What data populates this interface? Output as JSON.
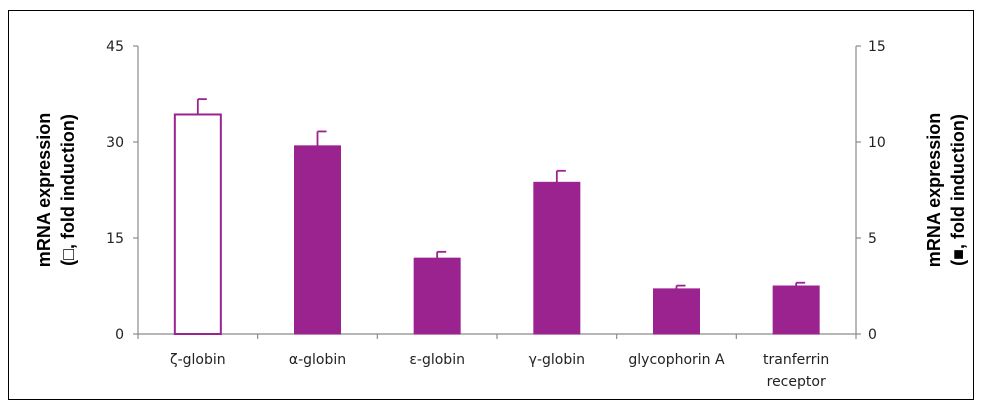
{
  "chart_data": {
    "type": "bar",
    "categories": [
      "ζ-globin",
      "α-globin",
      "ε-globin",
      "γ-globin",
      "glycophorin A",
      "tranferrin receptor"
    ],
    "series": [
      {
        "axis": "left",
        "values": [
          34.3,
          null,
          null,
          null,
          null,
          null
        ],
        "errors": [
          2.4,
          null,
          null,
          null,
          null,
          null
        ],
        "fill": "#ffffff",
        "stroke": "#9b2390"
      },
      {
        "axis": "right",
        "values": [
          null,
          9.8,
          3.95,
          7.9,
          2.35,
          2.5
        ],
        "errors": [
          null,
          0.75,
          0.33,
          0.6,
          0.17,
          0.17
        ],
        "fill": "#9b2390",
        "stroke": "#9b2390"
      }
    ],
    "y_left": {
      "ylim": [
        0,
        45
      ],
      "ticks": [
        "0",
        "15",
        "30",
        "45"
      ]
    },
    "y_right": {
      "ylim": [
        0,
        15
      ],
      "ticks": [
        "0",
        "5",
        "10",
        "15"
      ]
    },
    "ylabel_left": {
      "line1": "mRNA expression",
      "line2": "(□, fold induction)"
    },
    "ylabel_right": {
      "line1": "mRNA expression",
      "line2": "(■, fold induction)"
    },
    "grid": false,
    "colors": {
      "bar": "#9b2390",
      "axis": "#8c8c8c",
      "frame": "#000000"
    }
  }
}
